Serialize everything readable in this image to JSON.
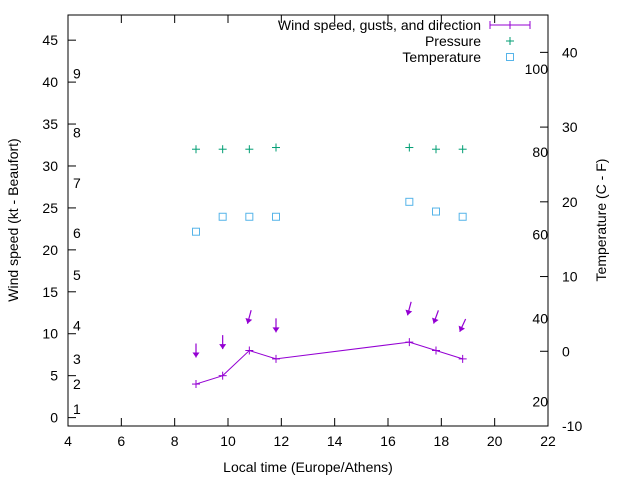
{
  "chart_data": {
    "type": "line",
    "xlabel": "Local time (Europe/Athens)",
    "ylabel": "Wind speed (kt - Beaufort)",
    "y2label": "Temperature (C - F)",
    "xlim": [
      4,
      22
    ],
    "ylim": [
      -1,
      48
    ],
    "y2lim": [
      -10,
      45
    ],
    "x_ticks": [
      4,
      6,
      8,
      10,
      12,
      14,
      16,
      18,
      20,
      22
    ],
    "y_ticks": [
      0,
      5,
      10,
      15,
      20,
      25,
      30,
      35,
      40,
      45
    ],
    "y2_ticks": [
      -10,
      0,
      10,
      20,
      30,
      40
    ],
    "beaufort_labels": [
      {
        "label": "1",
        "y": 1
      },
      {
        "label": "2",
        "y": 4
      },
      {
        "label": "3",
        "y": 7
      },
      {
        "label": "4",
        "y": 11
      },
      {
        "label": "5",
        "y": 17
      },
      {
        "label": "6",
        "y": 22
      },
      {
        "label": "7",
        "y": 28
      },
      {
        "label": "8",
        "y": 34
      },
      {
        "label": "9",
        "y": 41
      }
    ],
    "fahrenheit_labels": [
      {
        "label": "20",
        "y2": -6.7
      },
      {
        "label": "40",
        "y2": 4.4
      },
      {
        "label": "60",
        "y2": 15.6
      },
      {
        "label": "80",
        "y2": 26.7
      },
      {
        "label": "100",
        "y2": 37.8
      }
    ],
    "series": [
      {
        "name": "Wind speed, gusts, and direction",
        "color": "#9400d3",
        "x": [
          8.8,
          9.8,
          10.8,
          11.8,
          16.8,
          17.8,
          18.8
        ],
        "values": [
          4,
          5,
          8,
          7,
          9,
          8,
          7
        ],
        "arrows": [
          {
            "x": 8.8,
            "y": 8,
            "dir_deg": 0
          },
          {
            "x": 9.8,
            "y": 9,
            "dir_deg": 0
          },
          {
            "x": 10.8,
            "y": 12,
            "dir_deg": 15
          },
          {
            "x": 11.8,
            "y": 11,
            "dir_deg": 0
          },
          {
            "x": 16.8,
            "y": 13,
            "dir_deg": 15
          },
          {
            "x": 17.8,
            "y": 12,
            "dir_deg": 20
          },
          {
            "x": 18.8,
            "y": 11,
            "dir_deg": 25
          }
        ]
      },
      {
        "name": "Pressure",
        "color": "#009e73",
        "x": [
          8.8,
          9.8,
          10.8,
          11.8,
          16.8,
          17.8,
          18.8
        ],
        "values": [
          32,
          32,
          32,
          32.2,
          32.2,
          32,
          32
        ]
      },
      {
        "name": "Temperature",
        "color": "#56b4e9",
        "x": [
          8.8,
          9.8,
          10.8,
          11.8,
          16.8,
          17.8,
          18.8
        ],
        "values2": [
          16,
          18,
          18,
          18,
          20,
          18.7,
          18
        ]
      }
    ]
  }
}
